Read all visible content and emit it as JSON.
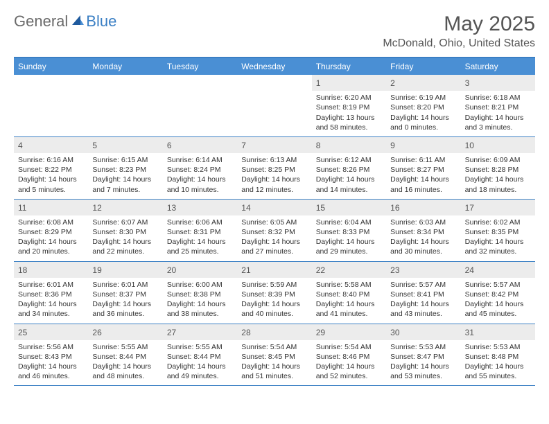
{
  "logo": {
    "text1": "General",
    "text2": "Blue",
    "icon_color": "#3a7fc4"
  },
  "header": {
    "title": "May 2025",
    "location": "McDonald, Ohio, United States"
  },
  "colors": {
    "header_bg": "#4a8fd4",
    "border": "#3a7fc4",
    "daynum_bg": "#ececec",
    "text": "#333333",
    "title_text": "#555555"
  },
  "day_names": [
    "Sunday",
    "Monday",
    "Tuesday",
    "Wednesday",
    "Thursday",
    "Friday",
    "Saturday"
  ],
  "weeks": [
    [
      null,
      null,
      null,
      null,
      {
        "n": "1",
        "sr": "Sunrise: 6:20 AM",
        "ss": "Sunset: 8:19 PM",
        "dl": "Daylight: 13 hours and 58 minutes."
      },
      {
        "n": "2",
        "sr": "Sunrise: 6:19 AM",
        "ss": "Sunset: 8:20 PM",
        "dl": "Daylight: 14 hours and 0 minutes."
      },
      {
        "n": "3",
        "sr": "Sunrise: 6:18 AM",
        "ss": "Sunset: 8:21 PM",
        "dl": "Daylight: 14 hours and 3 minutes."
      }
    ],
    [
      {
        "n": "4",
        "sr": "Sunrise: 6:16 AM",
        "ss": "Sunset: 8:22 PM",
        "dl": "Daylight: 14 hours and 5 minutes."
      },
      {
        "n": "5",
        "sr": "Sunrise: 6:15 AM",
        "ss": "Sunset: 8:23 PM",
        "dl": "Daylight: 14 hours and 7 minutes."
      },
      {
        "n": "6",
        "sr": "Sunrise: 6:14 AM",
        "ss": "Sunset: 8:24 PM",
        "dl": "Daylight: 14 hours and 10 minutes."
      },
      {
        "n": "7",
        "sr": "Sunrise: 6:13 AM",
        "ss": "Sunset: 8:25 PM",
        "dl": "Daylight: 14 hours and 12 minutes."
      },
      {
        "n": "8",
        "sr": "Sunrise: 6:12 AM",
        "ss": "Sunset: 8:26 PM",
        "dl": "Daylight: 14 hours and 14 minutes."
      },
      {
        "n": "9",
        "sr": "Sunrise: 6:11 AM",
        "ss": "Sunset: 8:27 PM",
        "dl": "Daylight: 14 hours and 16 minutes."
      },
      {
        "n": "10",
        "sr": "Sunrise: 6:09 AM",
        "ss": "Sunset: 8:28 PM",
        "dl": "Daylight: 14 hours and 18 minutes."
      }
    ],
    [
      {
        "n": "11",
        "sr": "Sunrise: 6:08 AM",
        "ss": "Sunset: 8:29 PM",
        "dl": "Daylight: 14 hours and 20 minutes."
      },
      {
        "n": "12",
        "sr": "Sunrise: 6:07 AM",
        "ss": "Sunset: 8:30 PM",
        "dl": "Daylight: 14 hours and 22 minutes."
      },
      {
        "n": "13",
        "sr": "Sunrise: 6:06 AM",
        "ss": "Sunset: 8:31 PM",
        "dl": "Daylight: 14 hours and 25 minutes."
      },
      {
        "n": "14",
        "sr": "Sunrise: 6:05 AM",
        "ss": "Sunset: 8:32 PM",
        "dl": "Daylight: 14 hours and 27 minutes."
      },
      {
        "n": "15",
        "sr": "Sunrise: 6:04 AM",
        "ss": "Sunset: 8:33 PM",
        "dl": "Daylight: 14 hours and 29 minutes."
      },
      {
        "n": "16",
        "sr": "Sunrise: 6:03 AM",
        "ss": "Sunset: 8:34 PM",
        "dl": "Daylight: 14 hours and 30 minutes."
      },
      {
        "n": "17",
        "sr": "Sunrise: 6:02 AM",
        "ss": "Sunset: 8:35 PM",
        "dl": "Daylight: 14 hours and 32 minutes."
      }
    ],
    [
      {
        "n": "18",
        "sr": "Sunrise: 6:01 AM",
        "ss": "Sunset: 8:36 PM",
        "dl": "Daylight: 14 hours and 34 minutes."
      },
      {
        "n": "19",
        "sr": "Sunrise: 6:01 AM",
        "ss": "Sunset: 8:37 PM",
        "dl": "Daylight: 14 hours and 36 minutes."
      },
      {
        "n": "20",
        "sr": "Sunrise: 6:00 AM",
        "ss": "Sunset: 8:38 PM",
        "dl": "Daylight: 14 hours and 38 minutes."
      },
      {
        "n": "21",
        "sr": "Sunrise: 5:59 AM",
        "ss": "Sunset: 8:39 PM",
        "dl": "Daylight: 14 hours and 40 minutes."
      },
      {
        "n": "22",
        "sr": "Sunrise: 5:58 AM",
        "ss": "Sunset: 8:40 PM",
        "dl": "Daylight: 14 hours and 41 minutes."
      },
      {
        "n": "23",
        "sr": "Sunrise: 5:57 AM",
        "ss": "Sunset: 8:41 PM",
        "dl": "Daylight: 14 hours and 43 minutes."
      },
      {
        "n": "24",
        "sr": "Sunrise: 5:57 AM",
        "ss": "Sunset: 8:42 PM",
        "dl": "Daylight: 14 hours and 45 minutes."
      }
    ],
    [
      {
        "n": "25",
        "sr": "Sunrise: 5:56 AM",
        "ss": "Sunset: 8:43 PM",
        "dl": "Daylight: 14 hours and 46 minutes."
      },
      {
        "n": "26",
        "sr": "Sunrise: 5:55 AM",
        "ss": "Sunset: 8:44 PM",
        "dl": "Daylight: 14 hours and 48 minutes."
      },
      {
        "n": "27",
        "sr": "Sunrise: 5:55 AM",
        "ss": "Sunset: 8:44 PM",
        "dl": "Daylight: 14 hours and 49 minutes."
      },
      {
        "n": "28",
        "sr": "Sunrise: 5:54 AM",
        "ss": "Sunset: 8:45 PM",
        "dl": "Daylight: 14 hours and 51 minutes."
      },
      {
        "n": "29",
        "sr": "Sunrise: 5:54 AM",
        "ss": "Sunset: 8:46 PM",
        "dl": "Daylight: 14 hours and 52 minutes."
      },
      {
        "n": "30",
        "sr": "Sunrise: 5:53 AM",
        "ss": "Sunset: 8:47 PM",
        "dl": "Daylight: 14 hours and 53 minutes."
      },
      {
        "n": "31",
        "sr": "Sunrise: 5:53 AM",
        "ss": "Sunset: 8:48 PM",
        "dl": "Daylight: 14 hours and 55 minutes."
      }
    ]
  ]
}
